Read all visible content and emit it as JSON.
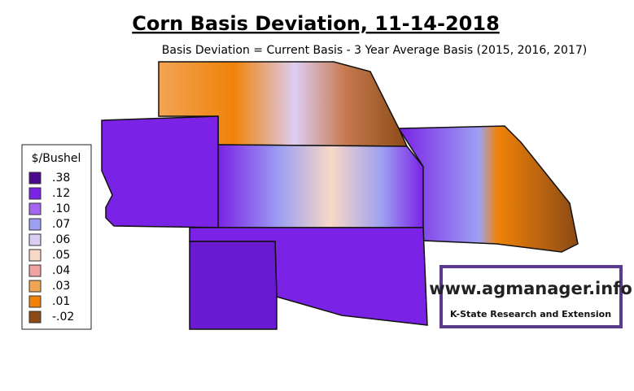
{
  "header": {
    "title": "Corn Basis Deviation, 11-14-2018",
    "subtitle": "Basis Deviation = Current Basis - 3 Year Average Basis (2015, 2016, 2017)"
  },
  "legend": {
    "title": "$/Bushel",
    "items": [
      {
        "label": ".38",
        "color": "#4b0a8c"
      },
      {
        "label": ".12",
        "color": "#7a22e6"
      },
      {
        "label": ".10",
        "color": "#a466f0"
      },
      {
        "label": ".07",
        "color": "#9da0f2"
      },
      {
        "label": ".06",
        "color": "#dccdf2"
      },
      {
        "label": ".05",
        "color": "#f8d8c6"
      },
      {
        "label": ".04",
        "color": "#f0a2a0"
      },
      {
        "label": ".03",
        "color": "#f2a455"
      },
      {
        "label": ".01",
        "color": "#f08208"
      },
      {
        "label": "-.02",
        "color": "#8b4a16"
      }
    ]
  },
  "logo": {
    "url": "www.agmanager.info",
    "org": "K-State Research and Extension"
  }
}
